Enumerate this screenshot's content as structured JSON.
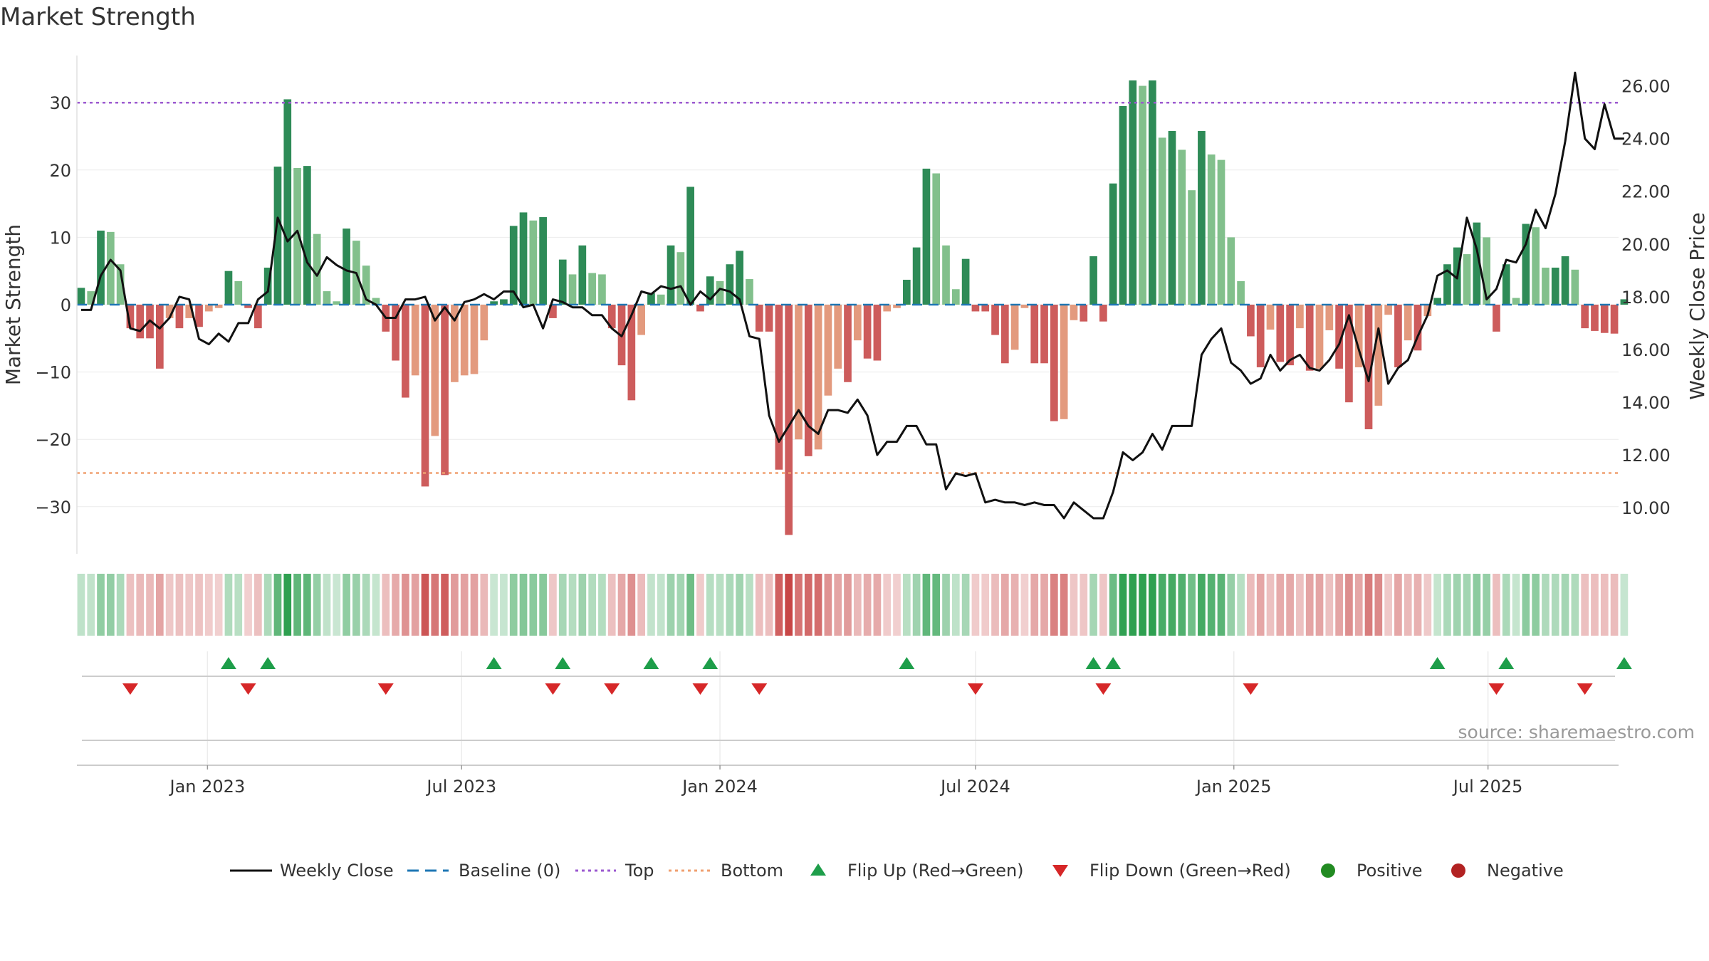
{
  "chart_data": {
    "type": "bar",
    "title": "Market Strength",
    "source": "source: sharemaestro.com",
    "ylabel_left": "Market Strength",
    "ylabel_right": "Weekly Close Price",
    "ylim_left": [
      -37,
      37
    ],
    "ylim_right": [
      8.25,
      27.15
    ],
    "left_ticks": [
      30,
      20,
      10,
      0,
      -10,
      -20,
      -30
    ],
    "left_tick_labels": [
      "30",
      "20",
      "10",
      "0",
      "−10",
      "−20",
      "−30"
    ],
    "right_ticks": [
      26,
      24,
      22,
      20,
      18,
      16,
      14,
      12,
      10
    ],
    "right_tick_labels": [
      "26.00",
      "24.00",
      "22.00",
      "20.00",
      "18.00",
      "16.00",
      "14.00",
      "12.00",
      "10.00"
    ],
    "x_date_ticks": [
      "2023-01-01",
      "2023-07-01",
      "2024-01-01",
      "2024-07-01",
      "2025-01-01",
      "2025-07-01"
    ],
    "x_tick_labels": [
      "Jan 2023",
      "Jul 2023",
      "Jan 2024",
      "Jul 2024",
      "Jan 2025",
      "Jul 2025"
    ],
    "x_start": "2022-09-30",
    "x_end": "2025-10-02",
    "top_threshold": 30,
    "bottom_threshold": -25,
    "colors": {
      "pos_strong": "#2e8b57",
      "pos_weak": "#82c08c",
      "neg_strong": "#cd5c5c",
      "neg_weak": "#e39a7e",
      "line": "#111111",
      "top": "#9b59d0",
      "bottom": "#f0a070",
      "baseline": "#1f77b4",
      "flip_up": "#1e9e4a",
      "flip_down": "#d62728",
      "positive_dot": "#228b22",
      "negative_dot": "#b22222"
    },
    "weeks_start": "2022-10-03",
    "strength": [
      2.5,
      2,
      11,
      10.8,
      6,
      -3.5,
      -5,
      -5,
      -9.5,
      -2,
      -3.5,
      -2,
      -3.3,
      -1,
      -0.5,
      5,
      3.5,
      -0.5,
      -3.5,
      5.5,
      20.5,
      30.5,
      20.3,
      20.6,
      10.5,
      2,
      0.5,
      11.3,
      9.5,
      5.8,
      1,
      -4,
      -8.3,
      -13.8,
      -10.5,
      -27,
      -19.5,
      -25.3,
      -11.5,
      -10.5,
      -10.3,
      -5.3,
      0.5,
      0.8,
      11.7,
      13.7,
      12.5,
      13,
      -2,
      6.7,
      4.5,
      8.8,
      4.7,
      4.5,
      -3.5,
      -9,
      -14.2,
      -4.5,
      1.7,
      1.5,
      8.8,
      7.8,
      17.5,
      -1,
      4.2,
      3.5,
      6,
      8,
      3.8,
      -4,
      -4,
      -24.5,
      -34.2,
      -20,
      -22.5,
      -21.5,
      -13.5,
      -9.5,
      -11.5,
      -5.3,
      -8,
      -8.3,
      -1,
      -0.5,
      3.7,
      8.5,
      20.2,
      19.5,
      8.8,
      2.3,
      6.8,
      -1,
      -1,
      -4.5,
      -8.7,
      -6.7,
      -0.5,
      -8.7,
      -8.7,
      -17.3,
      -17,
      -2.3,
      -2.5,
      7.2,
      -2.5,
      18,
      29.5,
      33.3,
      32.5,
      33.3,
      24.8,
      25.8,
      23,
      17,
      25.8,
      22.3,
      21.5,
      10,
      3.5,
      -4.7,
      -9.3,
      -3.7,
      -8.5,
      -9,
      -3.5,
      -9.8,
      -9.5,
      -3.8,
      -9.5,
      -14.5,
      -9.3,
      -18.5,
      -15,
      -1.5,
      -9.3,
      -5.3,
      -6.8,
      -1.7,
      1,
      6,
      8.5,
      7.5,
      12.2,
      10,
      -4,
      6,
      1,
      12,
      11.5,
      5.5,
      5.5,
      7.2,
      5.2,
      -3.5,
      -3.9,
      -4.2,
      -4.3,
      0.8
    ],
    "close": [
      17.5,
      17.5,
      18.8,
      19.4,
      19,
      16.8,
      16.7,
      17.1,
      16.8,
      17.2,
      18,
      17.9,
      16.4,
      16.2,
      16.6,
      16.3,
      17,
      17,
      17.9,
      18.2,
      21,
      20.1,
      20.5,
      19.3,
      18.8,
      19.5,
      19.2,
      19,
      18.9,
      17.9,
      17.7,
      17.2,
      17.2,
      17.9,
      17.9,
      18,
      17.1,
      17.6,
      17.1,
      17.8,
      17.9,
      18.1,
      17.9,
      18.2,
      18.2,
      17.6,
      17.7,
      16.8,
      17.9,
      17.8,
      17.6,
      17.6,
      17.3,
      17.3,
      16.8,
      16.5,
      17.3,
      18.2,
      18.1,
      18.4,
      18.3,
      18.4,
      17.7,
      18.2,
      17.9,
      18.3,
      18.2,
      17.9,
      16.5,
      16.4,
      13.5,
      12.5,
      13.1,
      13.7,
      13.1,
      12.8,
      13.7,
      13.7,
      13.6,
      14.1,
      13.5,
      12,
      12.5,
      12.5,
      13.1,
      13.1,
      12.4,
      12.4,
      10.7,
      11.3,
      11.2,
      11.3,
      10.2,
      10.3,
      10.2,
      10.2,
      10.1,
      10.2,
      10.1,
      10.1,
      9.6,
      10.2,
      9.9,
      9.6,
      9.6,
      10.6,
      12.1,
      11.8,
      12.1,
      12.8,
      12.2,
      13.1,
      13.1,
      13.1,
      15.8,
      16.4,
      16.8,
      15.5,
      15.2,
      14.7,
      14.9,
      15.8,
      15.2,
      15.6,
      15.8,
      15.3,
      15.2,
      15.6,
      16.2,
      17.3,
      16,
      14.8,
      16.8,
      14.7,
      15.3,
      15.6,
      16.5,
      17.3,
      18.8,
      19,
      18.7,
      21,
      19.8,
      17.9,
      18.3,
      19.4,
      19.3,
      20,
      21.3,
      20.6,
      21.9,
      23.9,
      26.5,
      24,
      23.6,
      25.3,
      24,
      24
    ]
  },
  "legend": {
    "weekly_close": "Weekly Close",
    "baseline": "Baseline (0)",
    "top": "Top",
    "bottom": "Bottom",
    "flip_up": "Flip Up (Red→Green)",
    "flip_down": "Flip Down (Green→Red)",
    "positive": "Positive",
    "negative": "Negative"
  }
}
